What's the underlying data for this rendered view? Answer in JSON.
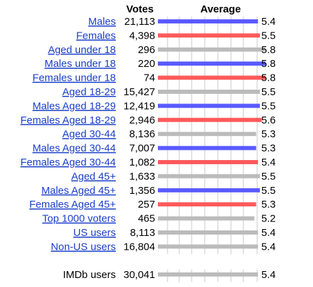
{
  "chart_data": {
    "type": "bar",
    "headers": {
      "votes": "Votes",
      "average": "Average"
    },
    "xlim": [
      0,
      5.8
    ],
    "grid": true,
    "rows": [
      {
        "label": "Males",
        "votes": "21,113",
        "average": 5.4,
        "average_label": "5.4",
        "color": "#5a5aff",
        "link": true
      },
      {
        "label": "Females",
        "votes": "4,398",
        "average": 5.5,
        "average_label": "5.5",
        "color": "#ff5a5a",
        "link": true
      },
      {
        "label": "Aged under 18",
        "votes": "296",
        "average": 5.8,
        "average_label": "5.8",
        "color": "#bbbbbb",
        "link": true
      },
      {
        "label": "Males under 18",
        "votes": "220",
        "average": 5.8,
        "average_label": "5.8",
        "color": "#5a5aff",
        "link": true
      },
      {
        "label": "Females under 18",
        "votes": "74",
        "average": 5.8,
        "average_label": "5.8",
        "color": "#ff5a5a",
        "link": true
      },
      {
        "label": "Aged 18-29",
        "votes": "15,427",
        "average": 5.5,
        "average_label": "5.5",
        "color": "#bbbbbb",
        "link": true
      },
      {
        "label": "Males Aged 18-29",
        "votes": "12,419",
        "average": 5.5,
        "average_label": "5.5",
        "color": "#5a5aff",
        "link": true
      },
      {
        "label": "Females Aged 18-29",
        "votes": "2,946",
        "average": 5.6,
        "average_label": "5.6",
        "color": "#ff5a5a",
        "link": true
      },
      {
        "label": "Aged 30-44",
        "votes": "8,136",
        "average": 5.3,
        "average_label": "5.3",
        "color": "#bbbbbb",
        "link": true
      },
      {
        "label": "Males Aged 30-44",
        "votes": "7,007",
        "average": 5.3,
        "average_label": "5.3",
        "color": "#5a5aff",
        "link": true
      },
      {
        "label": "Females Aged 30-44",
        "votes": "1,082",
        "average": 5.4,
        "average_label": "5.4",
        "color": "#ff5a5a",
        "link": true
      },
      {
        "label": "Aged 45+",
        "votes": "1,633",
        "average": 5.5,
        "average_label": "5.5",
        "color": "#bbbbbb",
        "link": true
      },
      {
        "label": "Males Aged 45+",
        "votes": "1,356",
        "average": 5.5,
        "average_label": "5.5",
        "color": "#5a5aff",
        "link": true
      },
      {
        "label": "Females Aged 45+",
        "votes": "257",
        "average": 5.3,
        "average_label": "5.3",
        "color": "#ff5a5a",
        "link": true
      },
      {
        "label": "Top 1000 voters",
        "votes": "465",
        "average": 5.2,
        "average_label": "5.2",
        "color": "#bbbbbb",
        "link": true
      },
      {
        "label": "US users",
        "votes": "8,113",
        "average": 5.4,
        "average_label": "5.4",
        "color": "#bbbbbb",
        "link": true
      },
      {
        "label": "Non-US users",
        "votes": "16,804",
        "average": 5.4,
        "average_label": "5.4",
        "color": "#bbbbbb",
        "link": true
      },
      {
        "label": "IMDb users",
        "votes": "30,041",
        "average": 5.4,
        "average_label": "5.4",
        "color": "#bbbbbb",
        "link": false
      }
    ]
  }
}
